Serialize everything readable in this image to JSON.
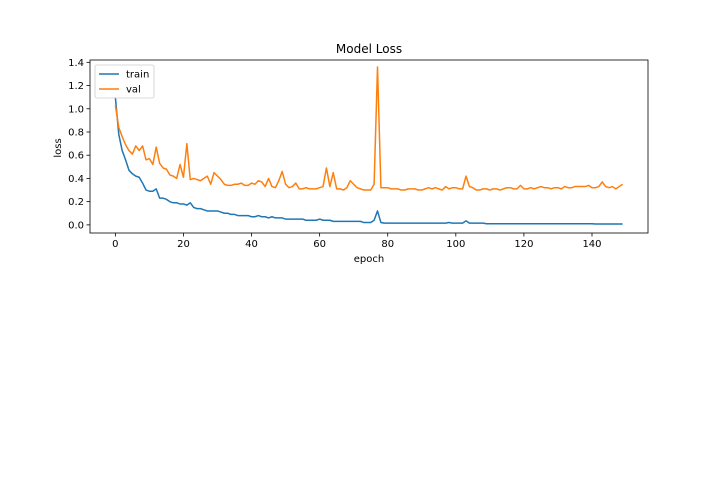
{
  "chart_data": {
    "type": "line",
    "title": "Model Loss",
    "xlabel": "epoch",
    "ylabel": "loss",
    "xlim": [
      -7.45,
      156.45
    ],
    "ylim": [
      -0.07,
      1.42
    ],
    "xticks": [
      0,
      20,
      40,
      60,
      80,
      100,
      120,
      140
    ],
    "yticks": [
      0.0,
      0.2,
      0.4,
      0.6,
      0.8,
      1.0,
      1.2,
      1.4
    ],
    "xtick_labels": [
      "0",
      "20",
      "40",
      "60",
      "80",
      "100",
      "120",
      "140"
    ],
    "ytick_labels": [
      "0.0",
      "0.2",
      "0.4",
      "0.6",
      "0.8",
      "1.0",
      "1.2",
      "1.4"
    ],
    "grid": false,
    "legend_position": "top-left",
    "series": [
      {
        "name": "train",
        "color": "#1f77b4",
        "values": [
          1.1,
          0.78,
          0.64,
          0.56,
          0.47,
          0.44,
          0.42,
          0.41,
          0.36,
          0.3,
          0.29,
          0.29,
          0.31,
          0.23,
          0.23,
          0.22,
          0.2,
          0.19,
          0.19,
          0.18,
          0.18,
          0.17,
          0.19,
          0.15,
          0.14,
          0.14,
          0.13,
          0.12,
          0.12,
          0.12,
          0.12,
          0.11,
          0.1,
          0.1,
          0.09,
          0.09,
          0.08,
          0.08,
          0.08,
          0.08,
          0.07,
          0.07,
          0.08,
          0.07,
          0.07,
          0.06,
          0.07,
          0.06,
          0.06,
          0.06,
          0.05,
          0.05,
          0.05,
          0.05,
          0.05,
          0.05,
          0.04,
          0.04,
          0.04,
          0.04,
          0.05,
          0.04,
          0.04,
          0.04,
          0.03,
          0.03,
          0.03,
          0.03,
          0.03,
          0.03,
          0.03,
          0.03,
          0.03,
          0.02,
          0.02,
          0.02,
          0.04,
          0.12,
          0.02,
          0.015,
          0.015,
          0.015,
          0.015,
          0.015,
          0.015,
          0.015,
          0.015,
          0.015,
          0.015,
          0.015,
          0.015,
          0.015,
          0.015,
          0.015,
          0.015,
          0.015,
          0.015,
          0.015,
          0.02,
          0.015,
          0.015,
          0.015,
          0.015,
          0.035,
          0.015,
          0.015,
          0.015,
          0.015,
          0.015,
          0.01,
          0.01,
          0.01,
          0.01,
          0.01,
          0.01,
          0.01,
          0.01,
          0.01,
          0.01,
          0.01,
          0.01,
          0.01,
          0.01,
          0.01,
          0.01,
          0.01,
          0.01,
          0.01,
          0.01,
          0.01,
          0.01,
          0.01,
          0.01,
          0.01,
          0.01,
          0.01,
          0.01,
          0.01,
          0.01,
          0.01,
          0.01,
          0.008,
          0.008,
          0.008,
          0.008,
          0.008,
          0.008,
          0.008,
          0.008,
          0.008
        ]
      },
      {
        "name": "val",
        "color": "#ff7f0e",
        "values": [
          1.03,
          0.84,
          0.76,
          0.69,
          0.64,
          0.61,
          0.68,
          0.64,
          0.68,
          0.56,
          0.57,
          0.52,
          0.67,
          0.53,
          0.49,
          0.48,
          0.43,
          0.42,
          0.4,
          0.52,
          0.41,
          0.7,
          0.39,
          0.4,
          0.39,
          0.38,
          0.4,
          0.42,
          0.35,
          0.45,
          0.42,
          0.39,
          0.35,
          0.34,
          0.34,
          0.35,
          0.35,
          0.36,
          0.34,
          0.34,
          0.36,
          0.35,
          0.38,
          0.37,
          0.33,
          0.4,
          0.33,
          0.32,
          0.38,
          0.46,
          0.35,
          0.32,
          0.33,
          0.36,
          0.31,
          0.31,
          0.32,
          0.31,
          0.31,
          0.31,
          0.32,
          0.33,
          0.49,
          0.33,
          0.45,
          0.31,
          0.31,
          0.3,
          0.32,
          0.38,
          0.35,
          0.32,
          0.31,
          0.3,
          0.3,
          0.3,
          0.35,
          1.36,
          0.32,
          0.32,
          0.32,
          0.31,
          0.31,
          0.31,
          0.3,
          0.3,
          0.31,
          0.31,
          0.31,
          0.3,
          0.3,
          0.31,
          0.32,
          0.31,
          0.32,
          0.31,
          0.3,
          0.33,
          0.31,
          0.32,
          0.32,
          0.31,
          0.31,
          0.42,
          0.33,
          0.32,
          0.3,
          0.3,
          0.31,
          0.31,
          0.3,
          0.31,
          0.31,
          0.3,
          0.31,
          0.32,
          0.32,
          0.31,
          0.31,
          0.34,
          0.31,
          0.31,
          0.32,
          0.31,
          0.32,
          0.33,
          0.32,
          0.32,
          0.31,
          0.32,
          0.32,
          0.31,
          0.33,
          0.32,
          0.32,
          0.33,
          0.33,
          0.33,
          0.33,
          0.34,
          0.32,
          0.32,
          0.33,
          0.37,
          0.33,
          0.32,
          0.33,
          0.31,
          0.33,
          0.35
        ]
      }
    ]
  }
}
